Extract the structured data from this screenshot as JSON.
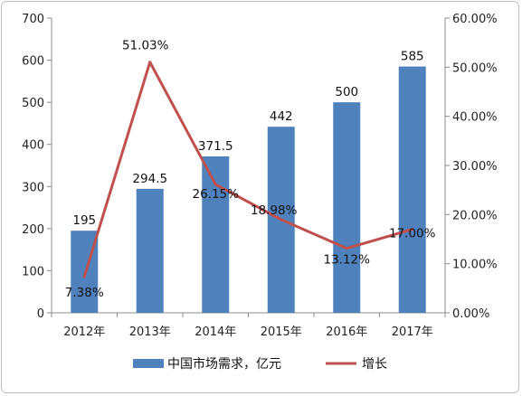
{
  "colors": {
    "bar": "#4f81bd",
    "line": "#c0504d",
    "axis": "#8c8c8c",
    "frame": "#bfbfbf"
  },
  "chart_data": {
    "type": "bar",
    "categories": [
      "2012年",
      "2013年",
      "2014年",
      "2015年",
      "2016年",
      "2017年"
    ],
    "series": [
      {
        "name": "中国市场需求，亿元",
        "type": "bar",
        "axis": "left",
        "values": [
          195,
          294.5,
          371.5,
          442,
          500,
          585
        ],
        "labels": [
          "195",
          "294.5",
          "371.5",
          "442",
          "500",
          "585"
        ]
      },
      {
        "name": "增长",
        "type": "line",
        "axis": "right",
        "values": [
          7.38,
          51.03,
          26.15,
          18.98,
          13.12,
          17.0
        ],
        "labels": [
          "7.38%",
          "51.03%",
          "26.15%",
          "18.98%",
          "13.12%",
          "17.00%"
        ]
      }
    ],
    "y_left": {
      "ylim": [
        0,
        700
      ],
      "ticks": [
        "0",
        "100",
        "200",
        "300",
        "400",
        "500",
        "600",
        "700"
      ]
    },
    "y_right": {
      "ylim": [
        0,
        60
      ],
      "ticks": [
        "0.00%",
        "10.00%",
        "20.00%",
        "30.00%",
        "40.00%",
        "50.00%",
        "60.00%"
      ]
    },
    "grid": false,
    "legend_position": "bottom"
  }
}
